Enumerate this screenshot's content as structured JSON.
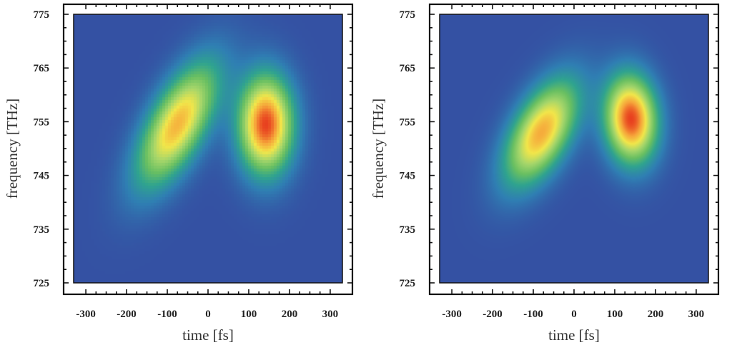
{
  "chart_data": [
    {
      "type": "heatmap",
      "title": "",
      "xlabel": "time [fs]",
      "ylabel": "frequency [THz]",
      "xlim": [
        -330,
        330
      ],
      "ylim": [
        725,
        775
      ],
      "xticks": [
        -300,
        -200,
        -100,
        0,
        100,
        200,
        300
      ],
      "xtick_labels": [
        "-300",
        "-200",
        "-100",
        "0",
        "100",
        "200",
        "300"
      ],
      "yticks": [
        725,
        735,
        745,
        755,
        765,
        775
      ],
      "ytick_labels": [
        "725",
        "735",
        "745",
        "755",
        "765",
        "775"
      ],
      "background_color": "#3451a3",
      "colormap": [
        "#3451a3",
        "#2f7fb3",
        "#2fa38f",
        "#68bf62",
        "#a6d66a",
        "#f2e64a",
        "#f6a43a",
        "#e8401f"
      ],
      "grid": false,
      "pixelated": true,
      "blobs": [
        {
          "t0": -75,
          "f0": 754.5,
          "sigma_t": 68,
          "sigma_f": 6.0,
          "tilt": 0.075,
          "peak": 0.82
        },
        {
          "t0": 142,
          "f0": 754.5,
          "sigma_t": 46,
          "sigma_f": 6.3,
          "tilt": 0.0,
          "peak": 1.0
        }
      ]
    },
    {
      "type": "heatmap",
      "title": "",
      "xlabel": "time [fs]",
      "ylabel": "frequency [THz]",
      "xlim": [
        -330,
        330
      ],
      "ylim": [
        725,
        775
      ],
      "xticks": [
        -300,
        -200,
        -100,
        0,
        100,
        200,
        300
      ],
      "xtick_labels": [
        "-300",
        "-200",
        "-100",
        "0",
        "100",
        "200",
        "300"
      ],
      "yticks": [
        725,
        735,
        745,
        755,
        765,
        775
      ],
      "ytick_labels": [
        "725",
        "735",
        "745",
        "755",
        "765",
        "775"
      ],
      "background_color": "#3451a3",
      "colormap": [
        "#3451a3",
        "#2f7fb3",
        "#2fa38f",
        "#68bf62",
        "#a6d66a",
        "#f2e64a",
        "#f6a43a",
        "#e8401f"
      ],
      "grid": false,
      "pixelated": false,
      "blobs": [
        {
          "t0": -80,
          "f0": 753.0,
          "sigma_t": 62,
          "sigma_f": 5.6,
          "tilt": 0.06,
          "peak": 0.84
        },
        {
          "t0": 140,
          "f0": 755.5,
          "sigma_t": 44,
          "sigma_f": 5.6,
          "tilt": -0.01,
          "peak": 1.0
        }
      ]
    }
  ]
}
